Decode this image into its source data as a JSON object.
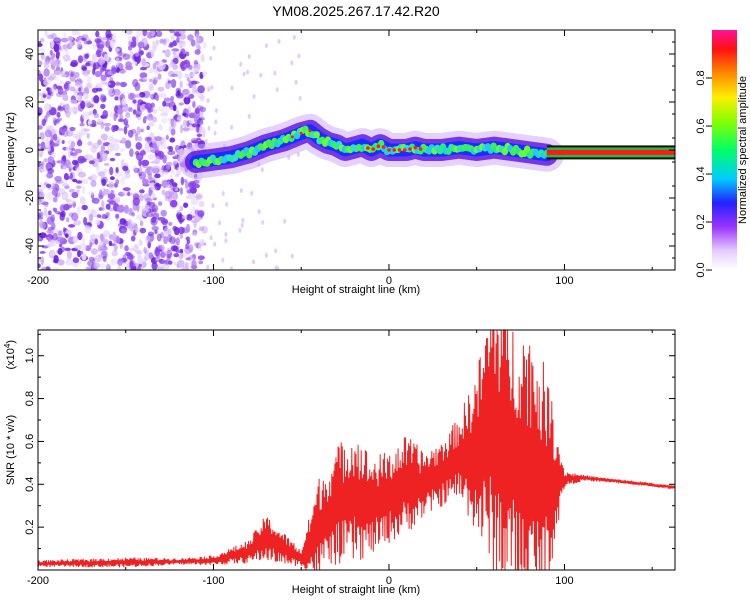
{
  "title": "YM08.2025.267.17.42.R20",
  "spectrogram": {
    "type": "heatmap",
    "xlabel": "Height of straight line (km)",
    "ylabel": "Frequency (Hz)",
    "xlim": [
      -200,
      163
    ],
    "ylim": [
      -50,
      50
    ],
    "xticks": [
      -200,
      -100,
      0,
      100
    ],
    "yticks": [
      -40,
      -20,
      0,
      20,
      40
    ],
    "colorbar": {
      "label": "Normalized spectral amplitude",
      "ticks": [
        0.0,
        0.2,
        0.4,
        0.6,
        0.8
      ],
      "range": [
        0,
        1
      ]
    },
    "ridge": {
      "x": [
        -110,
        -100,
        -90,
        -80,
        -70,
        -60,
        -50,
        -45,
        -40,
        -35,
        -30,
        -25,
        -20,
        -15,
        -10,
        -5,
        0,
        5,
        10,
        15,
        20,
        30,
        40,
        50,
        60,
        70,
        80,
        90
      ],
      "y": [
        -5,
        -4,
        -3,
        -1,
        2,
        4,
        7,
        8,
        5,
        3,
        2,
        0,
        1,
        2,
        0,
        2,
        0,
        0,
        0,
        1,
        0,
        0,
        1,
        0,
        1,
        0,
        -1,
        -2
      ]
    },
    "line": {
      "x_start": 90,
      "x_end": 163,
      "y": -1
    }
  },
  "snr": {
    "type": "line",
    "xlabel": "Height of straight line (km)",
    "ylabel": "SNR (10 * v/v)",
    "yscale_label": "(x10",
    "yscale_exp": "4",
    "yscale_close": ")",
    "xlim": [
      -200,
      163
    ],
    "ylim": [
      0,
      1.12
    ],
    "xticks": [
      -200,
      -100,
      0,
      100
    ],
    "yticks": [
      0.2,
      0.4,
      0.6,
      0.8,
      1.0
    ],
    "ytick_labels": [
      "0.2",
      "0.4",
      "0.6",
      "0.8",
      "1.0"
    ],
    "series": [
      {
        "name": "SNR",
        "color": "#ee2222",
        "envelope_x": [
          -200,
          -150,
          -120,
          -100,
          -80,
          -70,
          -60,
          -50,
          -40,
          -35,
          -30,
          -20,
          -10,
          0,
          10,
          20,
          30,
          40,
          50,
          60,
          70,
          80,
          90,
          100,
          110,
          130,
          163
        ],
        "envelope_low": [
          0.02,
          0.02,
          0.03,
          0.03,
          0.05,
          0.08,
          0.05,
          0.03,
          0.04,
          0.1,
          0.12,
          0.14,
          0.15,
          0.2,
          0.25,
          0.3,
          0.35,
          0.4,
          0.3,
          0.2,
          0.12,
          0.06,
          0.08,
          0.4,
          0.42,
          0.41,
          0.38
        ],
        "envelope_high": [
          0.04,
          0.05,
          0.05,
          0.06,
          0.12,
          0.22,
          0.15,
          0.08,
          0.35,
          0.4,
          0.48,
          0.55,
          0.45,
          0.48,
          0.55,
          0.5,
          0.55,
          0.65,
          0.8,
          1.1,
          0.95,
          0.9,
          0.75,
          0.45,
          0.44,
          0.42,
          0.39
        ]
      }
    ]
  }
}
